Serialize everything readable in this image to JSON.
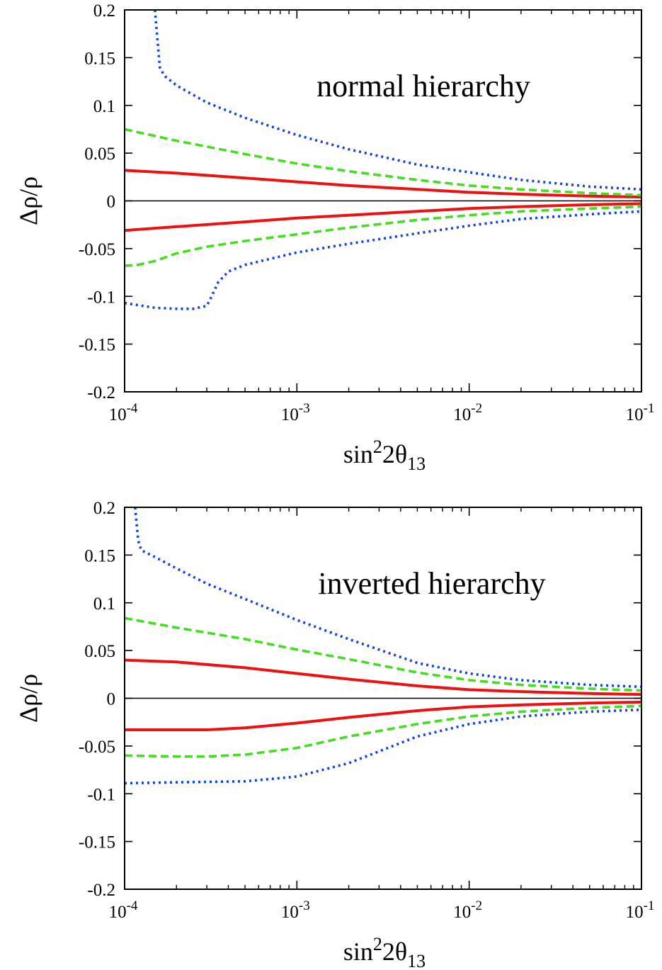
{
  "chart_data": [
    {
      "type": "line",
      "title": "normal hierarchy",
      "xlabel": "sin²2θ₁₃",
      "xlabel_parts": {
        "base": "sin",
        "sup": "2",
        "mid": "2θ",
        "sub": "13"
      },
      "ylabel": "Δρ/ρ",
      "xscale": "log",
      "xlim": [
        0.0001,
        0.1
      ],
      "ylim": [
        -0.2,
        0.2
      ],
      "x_ticks": [
        {
          "value": 0.0001,
          "base": "10",
          "exp": "-4"
        },
        {
          "value": 0.001,
          "base": "10",
          "exp": "-3"
        },
        {
          "value": 0.01,
          "base": "10",
          "exp": "-2"
        },
        {
          "value": 0.1,
          "base": "10",
          "exp": "-1"
        }
      ],
      "y_ticks": [
        {
          "value": 0.2,
          "label": "0.2"
        },
        {
          "value": 0.15,
          "label": "0.15"
        },
        {
          "value": 0.1,
          "label": "0.1"
        },
        {
          "value": 0.05,
          "label": "0.05"
        },
        {
          "value": 0,
          "label": "0"
        },
        {
          "value": -0.05,
          "label": "-0.05"
        },
        {
          "value": -0.1,
          "label": "-0.1"
        },
        {
          "value": -0.15,
          "label": "-0.15"
        },
        {
          "value": -0.2,
          "label": "-0.2"
        }
      ],
      "zero_line": true,
      "series": [
        {
          "style": "solid",
          "color": "#ee1111",
          "points": [
            [
              0.0001,
              0.032
            ],
            [
              0.0002,
              0.029
            ],
            [
              0.0005,
              0.024
            ],
            [
              0.001,
              0.02
            ],
            [
              0.002,
              0.016
            ],
            [
              0.005,
              0.012
            ],
            [
              0.01,
              0.009
            ],
            [
              0.02,
              0.007
            ],
            [
              0.05,
              0.005
            ],
            [
              0.1,
              0.004
            ]
          ]
        },
        {
          "style": "solid",
          "color": "#ee1111",
          "points": [
            [
              0.0001,
              -0.031
            ],
            [
              0.0002,
              -0.027
            ],
            [
              0.0005,
              -0.022
            ],
            [
              0.001,
              -0.018
            ],
            [
              0.002,
              -0.015
            ],
            [
              0.005,
              -0.011
            ],
            [
              0.01,
              -0.008
            ],
            [
              0.02,
              -0.006
            ],
            [
              0.05,
              -0.004
            ],
            [
              0.1,
              -0.003
            ]
          ]
        },
        {
          "style": "dashed",
          "color": "#44dd22",
          "points": [
            [
              0.0001,
              0.075
            ],
            [
              0.00015,
              0.068
            ],
            [
              0.0002,
              0.063
            ],
            [
              0.0005,
              0.049
            ],
            [
              0.001,
              0.039
            ],
            [
              0.002,
              0.031
            ],
            [
              0.005,
              0.022
            ],
            [
              0.01,
              0.016
            ],
            [
              0.02,
              0.012
            ],
            [
              0.05,
              0.008
            ],
            [
              0.1,
              0.006
            ]
          ]
        },
        {
          "style": "dashed",
          "color": "#44dd22",
          "points": [
            [
              0.0001,
              -0.068
            ],
            [
              0.00012,
              -0.067
            ],
            [
              0.00015,
              -0.063
            ],
            [
              0.0002,
              -0.055
            ],
            [
              0.0003,
              -0.048
            ],
            [
              0.0005,
              -0.042
            ],
            [
              0.001,
              -0.035
            ],
            [
              0.002,
              -0.028
            ],
            [
              0.005,
              -0.02
            ],
            [
              0.01,
              -0.015
            ],
            [
              0.02,
              -0.011
            ],
            [
              0.05,
              -0.008
            ],
            [
              0.1,
              -0.006
            ]
          ]
        },
        {
          "style": "dotted",
          "color": "#1144dd",
          "points": [
            [
              0.00015,
              0.2
            ],
            [
              0.000155,
              0.17
            ],
            [
              0.00016,
              0.14
            ],
            [
              0.00017,
              0.131
            ],
            [
              0.0002,
              0.121
            ],
            [
              0.0003,
              0.103
            ],
            [
              0.0005,
              0.087
            ],
            [
              0.001,
              0.069
            ],
            [
              0.002,
              0.054
            ],
            [
              0.005,
              0.038
            ],
            [
              0.01,
              0.03
            ],
            [
              0.02,
              0.022
            ],
            [
              0.05,
              0.015
            ],
            [
              0.1,
              0.012
            ]
          ]
        },
        {
          "style": "dotted",
          "color": "#1144dd",
          "points": [
            [
              0.0001,
              -0.107
            ],
            [
              0.00015,
              -0.112
            ],
            [
              0.0002,
              -0.113
            ],
            [
              0.00025,
              -0.113
            ],
            [
              0.0003,
              -0.11
            ],
            [
              0.00032,
              -0.1
            ],
            [
              0.00035,
              -0.085
            ],
            [
              0.0004,
              -0.074
            ],
            [
              0.0005,
              -0.067
            ],
            [
              0.001,
              -0.054
            ],
            [
              0.002,
              -0.045
            ],
            [
              0.005,
              -0.034
            ],
            [
              0.01,
              -0.026
            ],
            [
              0.02,
              -0.019
            ],
            [
              0.05,
              -0.014
            ],
            [
              0.1,
              -0.011
            ]
          ]
        }
      ]
    },
    {
      "type": "line",
      "title": "inverted hierarchy",
      "xlabel": "sin²2θ₁₃",
      "xlabel_parts": {
        "base": "sin",
        "sup": "2",
        "mid": "2θ",
        "sub": "13"
      },
      "ylabel": "Δρ/ρ",
      "xscale": "log",
      "xlim": [
        0.0001,
        0.1
      ],
      "ylim": [
        -0.2,
        0.2
      ],
      "x_ticks": [
        {
          "value": 0.0001,
          "base": "10",
          "exp": "-4"
        },
        {
          "value": 0.001,
          "base": "10",
          "exp": "-3"
        },
        {
          "value": 0.01,
          "base": "10",
          "exp": "-2"
        },
        {
          "value": 0.1,
          "base": "10",
          "exp": "-1"
        }
      ],
      "y_ticks": [
        {
          "value": 0.2,
          "label": "0.2"
        },
        {
          "value": 0.15,
          "label": "0.15"
        },
        {
          "value": 0.1,
          "label": "0.1"
        },
        {
          "value": 0.05,
          "label": "0.05"
        },
        {
          "value": 0,
          "label": "0"
        },
        {
          "value": -0.05,
          "label": "-0.05"
        },
        {
          "value": -0.1,
          "label": "-0.1"
        },
        {
          "value": -0.15,
          "label": "-0.15"
        },
        {
          "value": -0.2,
          "label": "-0.2"
        }
      ],
      "zero_line": true,
      "series": [
        {
          "style": "solid",
          "color": "#ee1111",
          "points": [
            [
              0.0001,
              0.04
            ],
            [
              0.0002,
              0.038
            ],
            [
              0.0005,
              0.032
            ],
            [
              0.001,
              0.026
            ],
            [
              0.002,
              0.02
            ],
            [
              0.005,
              0.013
            ],
            [
              0.01,
              0.009
            ],
            [
              0.02,
              0.007
            ],
            [
              0.05,
              0.005
            ],
            [
              0.1,
              0.004
            ]
          ]
        },
        {
          "style": "solid",
          "color": "#ee1111",
          "points": [
            [
              0.0001,
              -0.033
            ],
            [
              0.0002,
              -0.033
            ],
            [
              0.0003,
              -0.033
            ],
            [
              0.0005,
              -0.031
            ],
            [
              0.001,
              -0.026
            ],
            [
              0.002,
              -0.02
            ],
            [
              0.005,
              -0.013
            ],
            [
              0.01,
              -0.009
            ],
            [
              0.02,
              -0.007
            ],
            [
              0.05,
              -0.005
            ],
            [
              0.1,
              -0.004
            ]
          ]
        },
        {
          "style": "dashed",
          "color": "#44dd22",
          "points": [
            [
              0.0001,
              0.084
            ],
            [
              0.0002,
              0.074
            ],
            [
              0.0005,
              0.062
            ],
            [
              0.001,
              0.051
            ],
            [
              0.002,
              0.041
            ],
            [
              0.005,
              0.027
            ],
            [
              0.01,
              0.019
            ],
            [
              0.02,
              0.014
            ],
            [
              0.05,
              0.01
            ],
            [
              0.1,
              0.008
            ]
          ]
        },
        {
          "style": "dashed",
          "color": "#44dd22",
          "points": [
            [
              0.0001,
              -0.06
            ],
            [
              0.0002,
              -0.061
            ],
            [
              0.0003,
              -0.061
            ],
            [
              0.0005,
              -0.059
            ],
            [
              0.001,
              -0.052
            ],
            [
              0.002,
              -0.04
            ],
            [
              0.005,
              -0.027
            ],
            [
              0.01,
              -0.019
            ],
            [
              0.02,
              -0.014
            ],
            [
              0.05,
              -0.01
            ],
            [
              0.1,
              -0.008
            ]
          ]
        },
        {
          "style": "dotted",
          "color": "#1144dd",
          "points": [
            [
              0.000115,
              0.2
            ],
            [
              0.00012,
              0.165
            ],
            [
              0.000125,
              0.155
            ],
            [
              0.00015,
              0.148
            ],
            [
              0.0002,
              0.136
            ],
            [
              0.0003,
              0.12
            ],
            [
              0.0005,
              0.104
            ],
            [
              0.001,
              0.082
            ],
            [
              0.002,
              0.062
            ],
            [
              0.005,
              0.037
            ],
            [
              0.01,
              0.026
            ],
            [
              0.02,
              0.019
            ],
            [
              0.05,
              0.014
            ],
            [
              0.1,
              0.012
            ]
          ]
        },
        {
          "style": "dotted",
          "color": "#1144dd",
          "points": [
            [
              0.0001,
              -0.089
            ],
            [
              0.0002,
              -0.088
            ],
            [
              0.0005,
              -0.087
            ],
            [
              0.001,
              -0.082
            ],
            [
              0.002,
              -0.068
            ],
            [
              0.005,
              -0.04
            ],
            [
              0.01,
              -0.027
            ],
            [
              0.02,
              -0.019
            ],
            [
              0.05,
              -0.014
            ],
            [
              0.1,
              -0.012
            ]
          ]
        }
      ]
    }
  ]
}
